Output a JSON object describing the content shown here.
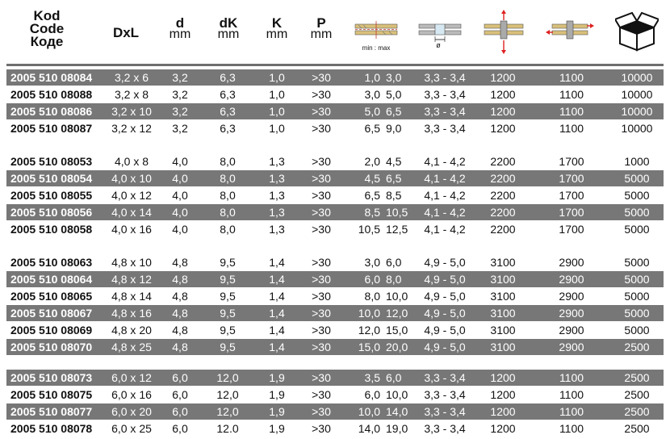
{
  "header": {
    "code_lines": [
      "Kod",
      "Code",
      "Коде"
    ],
    "dxl": "DxL",
    "d": "d",
    "d_unit": "mm",
    "dk": "dK",
    "dk_unit": "mm",
    "k": "K",
    "k_unit": "mm",
    "p": "P",
    "p_unit": "mm",
    "grip_note": "min : max",
    "hole_symbol": "ø",
    "icons": [
      "grip-range-icon",
      "hole-diameter-icon",
      "tensile-force-icon",
      "shear-force-icon",
      "box-quantity-icon"
    ]
  },
  "groups": [
    {
      "rows": [
        {
          "code": "2005 510 08084",
          "dxl": "3,2 x 6",
          "d": "3,2",
          "dk": "6,3",
          "k": "1,0",
          "p": ">30",
          "gmin": "1,0",
          "gmax": "3,0",
          "hole": "3,3 - 3,4",
          "tensile": "1200",
          "shear": "1100",
          "qty": "10000",
          "shade": "dark"
        },
        {
          "code": "2005 510 08088",
          "dxl": "3,2 x 8",
          "d": "3,2",
          "dk": "6,3",
          "k": "1,0",
          "p": ">30",
          "gmin": "3,0",
          "gmax": "5,0",
          "hole": "3,3 - 3,4",
          "tensile": "1200",
          "shear": "1100",
          "qty": "10000",
          "shade": "light"
        },
        {
          "code": "2005 510 08086",
          "dxl": "3,2 x 10",
          "d": "3,2",
          "dk": "6,3",
          "k": "1,0",
          "p": ">30",
          "gmin": "5,0",
          "gmax": "6,5",
          "hole": "3,3 - 3,4",
          "tensile": "1200",
          "shear": "1100",
          "qty": "10000",
          "shade": "dark"
        },
        {
          "code": "2005 510 08087",
          "dxl": "3,2 x 12",
          "d": "3,2",
          "dk": "6,3",
          "k": "1,0",
          "p": ">30",
          "gmin": "6,5",
          "gmax": "9,0",
          "hole": "3,3 - 3,4",
          "tensile": "1200",
          "shear": "1100",
          "qty": "10000",
          "shade": "light"
        }
      ]
    },
    {
      "rows": [
        {
          "code": "2005 510 08053",
          "dxl": "4,0 x 8",
          "d": "4,0",
          "dk": "8,0",
          "k": "1,3",
          "p": ">30",
          "gmin": "2,0",
          "gmax": "4,5",
          "hole": "4,1 - 4,2",
          "tensile": "2200",
          "shear": "1700",
          "qty": "1000",
          "shade": "light"
        },
        {
          "code": "2005 510 08054",
          "dxl": "4,0 x 10",
          "d": "4,0",
          "dk": "8,0",
          "k": "1,3",
          "p": ">30",
          "gmin": "4,5",
          "gmax": "6,5",
          "hole": "4,1 - 4,2",
          "tensile": "2200",
          "shear": "1700",
          "qty": "5000",
          "shade": "dark"
        },
        {
          "code": "2005 510 08055",
          "dxl": "4,0 x 12",
          "d": "4,0",
          "dk": "8,0",
          "k": "1,3",
          "p": ">30",
          "gmin": "6,5",
          "gmax": "8,5",
          "hole": "4,1 - 4,2",
          "tensile": "2200",
          "shear": "1700",
          "qty": "5000",
          "shade": "light"
        },
        {
          "code": "2005 510 08056",
          "dxl": "4,0 x 14",
          "d": "4,0",
          "dk": "8,0",
          "k": "1,3",
          "p": ">30",
          "gmin": "8,5",
          "gmax": "10,5",
          "hole": "4,1 - 4,2",
          "tensile": "2200",
          "shear": "1700",
          "qty": "5000",
          "shade": "dark"
        },
        {
          "code": "2005 510 08058",
          "dxl": "4,0 x 16",
          "d": "4,0",
          "dk": "8,0",
          "k": "1,3",
          "p": ">30",
          "gmin": "10,5",
          "gmax": "12,5",
          "hole": "4,1 - 4,2",
          "tensile": "2200",
          "shear": "1700",
          "qty": "5000",
          "shade": "light"
        }
      ]
    },
    {
      "rows": [
        {
          "code": "2005 510 08063",
          "dxl": "4,8 x 10",
          "d": "4,8",
          "dk": "9,5",
          "k": "1,4",
          "p": ">30",
          "gmin": "3,0",
          "gmax": "6,0",
          "hole": "4,9 - 5,0",
          "tensile": "3100",
          "shear": "2900",
          "qty": "5000",
          "shade": "light"
        },
        {
          "code": "2005 510 08064",
          "dxl": "4,8 x 12",
          "d": "4,8",
          "dk": "9,5",
          "k": "1,4",
          "p": ">30",
          "gmin": "6,0",
          "gmax": "8,0",
          "hole": "4,9 - 5,0",
          "tensile": "3100",
          "shear": "2900",
          "qty": "5000",
          "shade": "dark"
        },
        {
          "code": "2005 510 08065",
          "dxl": "4,8 x 14",
          "d": "4,8",
          "dk": "9,5",
          "k": "1,4",
          "p": ">30",
          "gmin": "8,0",
          "gmax": "10,0",
          "hole": "4,9 - 5,0",
          "tensile": "3100",
          "shear": "2900",
          "qty": "5000",
          "shade": "light"
        },
        {
          "code": "2005 510 08067",
          "dxl": "4,8 x 16",
          "d": "4,8",
          "dk": "9,5",
          "k": "1,4",
          "p": ">30",
          "gmin": "10,0",
          "gmax": "12,0",
          "hole": "4,9 - 5,0",
          "tensile": "3100",
          "shear": "2900",
          "qty": "5000",
          "shade": "dark"
        },
        {
          "code": "2005 510 08069",
          "dxl": "4,8 x 20",
          "d": "4,8",
          "dk": "9,5",
          "k": "1,4",
          "p": ">30",
          "gmin": "12,0",
          "gmax": "15,0",
          "hole": "4,9 - 5,0",
          "tensile": "3100",
          "shear": "2900",
          "qty": "5000",
          "shade": "light"
        },
        {
          "code": "2005 510 08070",
          "dxl": "4,8 x 25",
          "d": "4,8",
          "dk": "9,5",
          "k": "1,4",
          "p": ">30",
          "gmin": "15,0",
          "gmax": "20,0",
          "hole": "4,9 - 5,0",
          "tensile": "3100",
          "shear": "2900",
          "qty": "2500",
          "shade": "dark"
        }
      ]
    },
    {
      "rows": [
        {
          "code": "2005 510 08073",
          "dxl": "6,0 x 12",
          "d": "6,0",
          "dk": "12,0",
          "k": "1,9",
          "p": ">30",
          "gmin": "3,5",
          "gmax": "6,0",
          "hole": "3,3 - 3,4",
          "tensile": "1200",
          "shear": "1100",
          "qty": "2500",
          "shade": "dark"
        },
        {
          "code": "2005 510 08075",
          "dxl": "6,0 x 16",
          "d": "6,0",
          "dk": "12,0",
          "k": "1,9",
          "p": ">30",
          "gmin": "6,0",
          "gmax": "10,0",
          "hole": "3,3 - 3,4",
          "tensile": "1200",
          "shear": "1100",
          "qty": "2500",
          "shade": "light"
        },
        {
          "code": "2005 510 08077",
          "dxl": "6,0 x 20",
          "d": "6,0",
          "dk": "12,0",
          "k": "1,9",
          "p": ">30",
          "gmin": "10,0",
          "gmax": "14,0",
          "hole": "3,3 - 3,4",
          "tensile": "1200",
          "shear": "1100",
          "qty": "2500",
          "shade": "dark"
        },
        {
          "code": "2005 510 08078",
          "dxl": "6,0 x 25",
          "d": "6,0",
          "dk": "12.0",
          "k": "1,9",
          "p": ">30",
          "gmin": "14,0",
          "gmax": "19,0",
          "hole": "3,3 - 3,4",
          "tensile": "1200",
          "shear": "1100",
          "qty": "2500",
          "shade": "light"
        }
      ]
    }
  ]
}
